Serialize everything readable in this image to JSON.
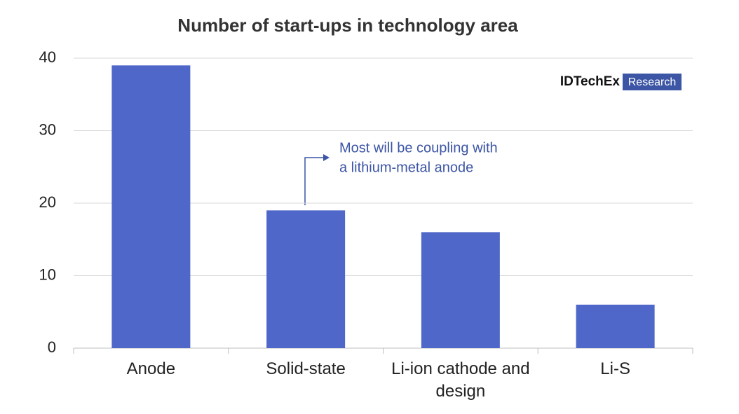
{
  "chart_data": {
    "type": "bar",
    "title": "Number of start-ups in technology area",
    "categories": [
      "Anode",
      "Solid-state",
      "Li-ion cathode and design",
      "Li-S"
    ],
    "values": [
      39,
      19,
      16,
      6
    ],
    "color": "#4f67c8",
    "ylim": [
      0,
      40
    ],
    "yticks": [
      0,
      10,
      20,
      30,
      40
    ],
    "grid": true,
    "annotation": [
      "Most will be coupling with",
      "a lithium-metal anode"
    ],
    "logo": {
      "brand": "IDTechEx",
      "tag": "Research"
    }
  }
}
